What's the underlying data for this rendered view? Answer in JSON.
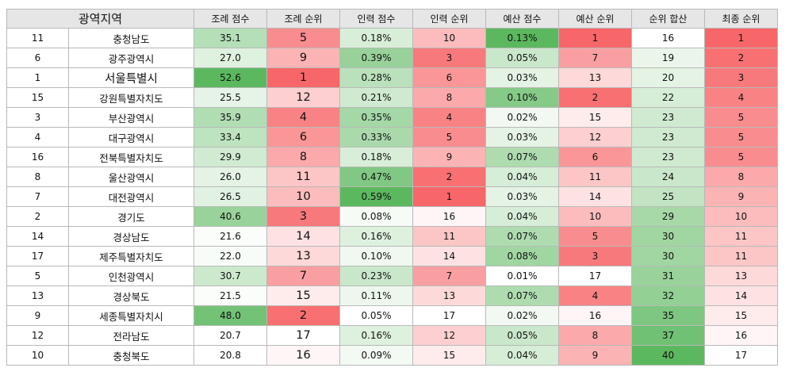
{
  "table": {
    "headers": [
      "광역지역",
      "조례 점수",
      "조례 순위",
      "인력 점수",
      "인력 순위",
      "예산 점수",
      "예산 순위",
      "순위 합산",
      "최종 순위"
    ],
    "rows": [
      {
        "id": "11",
        "region": "충청남도",
        "ordinance_score": "35.1",
        "ordinance_rank": "5",
        "staff_score": "0.18%",
        "staff_rank": "10",
        "budget_score": "0.13%",
        "budget_rank": "1",
        "rank_sum": "16",
        "final_rank": "1"
      },
      {
        "id": "6",
        "region": "광주광역시",
        "ordinance_score": "27.0",
        "ordinance_rank": "9",
        "staff_score": "0.39%",
        "staff_rank": "3",
        "budget_score": "0.05%",
        "budget_rank": "7",
        "rank_sum": "19",
        "final_rank": "2"
      },
      {
        "id": "1",
        "region": "서울특별시",
        "ordinance_score": "52.6",
        "ordinance_rank": "1",
        "staff_score": "0.28%",
        "staff_rank": "6",
        "budget_score": "0.03%",
        "budget_rank": "13",
        "rank_sum": "20",
        "final_rank": "3"
      },
      {
        "id": "15",
        "region": "강원특별자치도",
        "ordinance_score": "25.5",
        "ordinance_rank": "12",
        "staff_score": "0.21%",
        "staff_rank": "8",
        "budget_score": "0.10%",
        "budget_rank": "2",
        "rank_sum": "22",
        "final_rank": "4"
      },
      {
        "id": "3",
        "region": "부산광역시",
        "ordinance_score": "35.9",
        "ordinance_rank": "4",
        "staff_score": "0.35%",
        "staff_rank": "4",
        "budget_score": "0.02%",
        "budget_rank": "15",
        "rank_sum": "23",
        "final_rank": "5"
      },
      {
        "id": "4",
        "region": "대구광역시",
        "ordinance_score": "33.4",
        "ordinance_rank": "6",
        "staff_score": "0.33%",
        "staff_rank": "5",
        "budget_score": "0.03%",
        "budget_rank": "12",
        "rank_sum": "23",
        "final_rank": "5"
      },
      {
        "id": "16",
        "region": "전북특별자치도",
        "ordinance_score": "29.9",
        "ordinance_rank": "8",
        "staff_score": "0.18%",
        "staff_rank": "9",
        "budget_score": "0.07%",
        "budget_rank": "6",
        "rank_sum": "23",
        "final_rank": "5"
      },
      {
        "id": "8",
        "region": "울산광역시",
        "ordinance_score": "26.0",
        "ordinance_rank": "11",
        "staff_score": "0.47%",
        "staff_rank": "2",
        "budget_score": "0.04%",
        "budget_rank": "11",
        "rank_sum": "24",
        "final_rank": "8"
      },
      {
        "id": "7",
        "region": "대전광역시",
        "ordinance_score": "26.5",
        "ordinance_rank": "10",
        "staff_score": "0.59%",
        "staff_rank": "1",
        "budget_score": "0.03%",
        "budget_rank": "14",
        "rank_sum": "25",
        "final_rank": "9"
      },
      {
        "id": "2",
        "region": "경기도",
        "ordinance_score": "40.6",
        "ordinance_rank": "3",
        "staff_score": "0.08%",
        "staff_rank": "16",
        "budget_score": "0.04%",
        "budget_rank": "10",
        "rank_sum": "29",
        "final_rank": "10"
      },
      {
        "id": "14",
        "region": "경상남도",
        "ordinance_score": "21.6",
        "ordinance_rank": "14",
        "staff_score": "0.16%",
        "staff_rank": "11",
        "budget_score": "0.07%",
        "budget_rank": "5",
        "rank_sum": "30",
        "final_rank": "11"
      },
      {
        "id": "17",
        "region": "제주특별자치도",
        "ordinance_score": "22.0",
        "ordinance_rank": "13",
        "staff_score": "0.10%",
        "staff_rank": "14",
        "budget_score": "0.08%",
        "budget_rank": "3",
        "rank_sum": "30",
        "final_rank": "11"
      },
      {
        "id": "5",
        "region": "인천광역시",
        "ordinance_score": "30.7",
        "ordinance_rank": "7",
        "staff_score": "0.23%",
        "staff_rank": "7",
        "budget_score": "0.01%",
        "budget_rank": "17",
        "rank_sum": "31",
        "final_rank": "13"
      },
      {
        "id": "13",
        "region": "경상북도",
        "ordinance_score": "21.5",
        "ordinance_rank": "15",
        "staff_score": "0.11%",
        "staff_rank": "13",
        "budget_score": "0.07%",
        "budget_rank": "4",
        "rank_sum": "32",
        "final_rank": "14"
      },
      {
        "id": "9",
        "region": "세종특별자치시",
        "ordinance_score": "48.0",
        "ordinance_rank": "2",
        "staff_score": "0.05%",
        "staff_rank": "17",
        "budget_score": "0.02%",
        "budget_rank": "16",
        "rank_sum": "35",
        "final_rank": "15"
      },
      {
        "id": "12",
        "region": "전라남도",
        "ordinance_score": "20.7",
        "ordinance_rank": "17",
        "staff_score": "0.16%",
        "staff_rank": "12",
        "budget_score": "0.05%",
        "budget_rank": "8",
        "rank_sum": "37",
        "final_rank": "16"
      },
      {
        "id": "10",
        "region": "충청북도",
        "ordinance_score": "20.8",
        "ordinance_rank": "16",
        "staff_score": "0.09%",
        "staff_rank": "15",
        "budget_score": "0.04%",
        "budget_rank": "9",
        "rank_sum": "40",
        "final_rank": "17"
      }
    ]
  },
  "colors": {
    "score_high": "#5cb85f",
    "score_low": "#ffffff",
    "rank_best": "#f76668",
    "rank_worst": "#ffffff",
    "header_bg": "#e6e6e6",
    "border": "#b9b9b9"
  }
}
